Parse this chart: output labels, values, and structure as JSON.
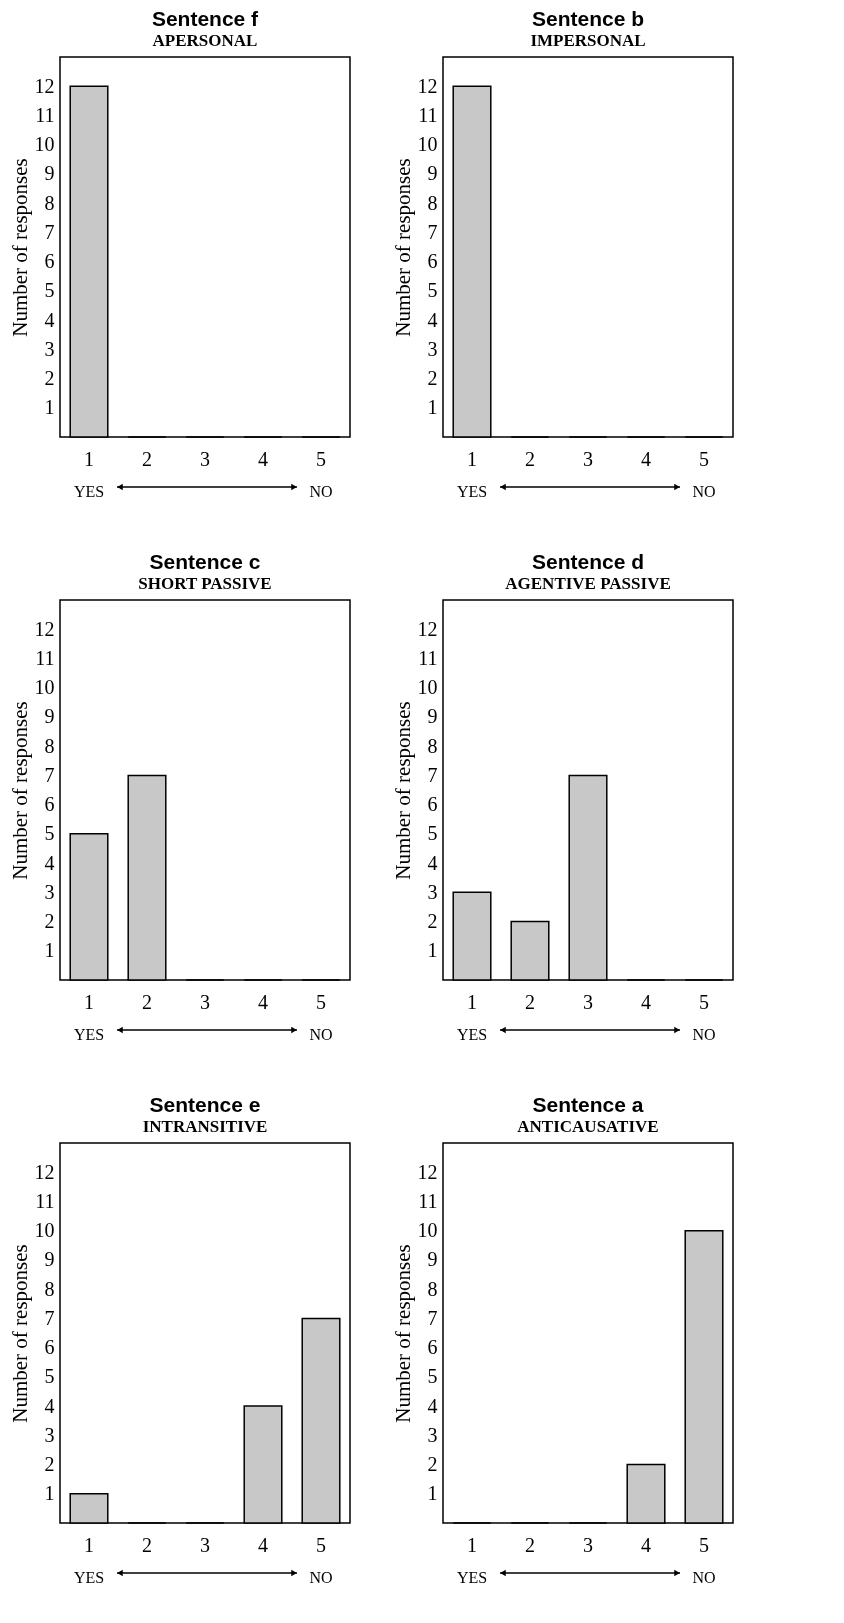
{
  "chart_data": [
    {
      "type": "bar",
      "title": "Sentence f",
      "subtitle": "APERSONAL",
      "ylabel": "Number of responses",
      "categories": [
        "1",
        "2",
        "3",
        "4",
        "5"
      ],
      "values": [
        12,
        0,
        0,
        0,
        0
      ],
      "color": "#c8c8c8",
      "ylim": [
        0,
        13
      ],
      "yticks": [
        1,
        2,
        3,
        4,
        5,
        6,
        7,
        8,
        9,
        10,
        11,
        12
      ],
      "annotations": [
        "YES",
        "NO"
      ]
    },
    {
      "type": "bar",
      "title": "Sentence b",
      "subtitle": "IMPERSONAL",
      "ylabel": "Number of responses",
      "categories": [
        "1",
        "2",
        "3",
        "4",
        "5"
      ],
      "values": [
        12,
        0,
        0,
        0,
        0
      ],
      "color": "#c8c8c8",
      "ylim": [
        0,
        13
      ],
      "yticks": [
        1,
        2,
        3,
        4,
        5,
        6,
        7,
        8,
        9,
        10,
        11,
        12
      ],
      "annotations": [
        "YES",
        "NO"
      ]
    },
    {
      "type": "bar",
      "title": "Sentence c",
      "subtitle": "SHORT PASSIVE",
      "ylabel": "Number of responses",
      "categories": [
        "1",
        "2",
        "3",
        "4",
        "5"
      ],
      "values": [
        5,
        7,
        0,
        0,
        0
      ],
      "color": "#c8c8c8",
      "ylim": [
        0,
        13
      ],
      "yticks": [
        1,
        2,
        3,
        4,
        5,
        6,
        7,
        8,
        9,
        10,
        11,
        12
      ],
      "annotations": [
        "YES",
        "NO"
      ]
    },
    {
      "type": "bar",
      "title": "Sentence d",
      "subtitle": "AGENTIVE PASSIVE",
      "ylabel": "Number of responses",
      "categories": [
        "1",
        "2",
        "3",
        "4",
        "5"
      ],
      "values": [
        3,
        2,
        7,
        0,
        0
      ],
      "color": "#c8c8c8",
      "ylim": [
        0,
        13
      ],
      "yticks": [
        1,
        2,
        3,
        4,
        5,
        6,
        7,
        8,
        9,
        10,
        11,
        12
      ],
      "annotations": [
        "YES",
        "NO"
      ]
    },
    {
      "type": "bar",
      "title": "Sentence e",
      "subtitle": "INTRANSITIVE",
      "ylabel": "Number of responses",
      "categories": [
        "1",
        "2",
        "3",
        "4",
        "5"
      ],
      "values": [
        1,
        0,
        0,
        4,
        7
      ],
      "color": "#c8c8c8",
      "ylim": [
        0,
        13
      ],
      "yticks": [
        1,
        2,
        3,
        4,
        5,
        6,
        7,
        8,
        9,
        10,
        11,
        12
      ],
      "annotations": [
        "YES",
        "NO"
      ]
    },
    {
      "type": "bar",
      "title": "Sentence a",
      "subtitle": "ANTICAUSATIVE",
      "ylabel": "Number of responses",
      "categories": [
        "1",
        "2",
        "3",
        "4",
        "5"
      ],
      "values": [
        0,
        0,
        0,
        2,
        10
      ],
      "color": "#c8c8c8",
      "ylim": [
        0,
        13
      ],
      "yticks": [
        1,
        2,
        3,
        4,
        5,
        6,
        7,
        8,
        9,
        10,
        11,
        12
      ],
      "annotations": [
        "YES",
        "NO"
      ]
    }
  ]
}
